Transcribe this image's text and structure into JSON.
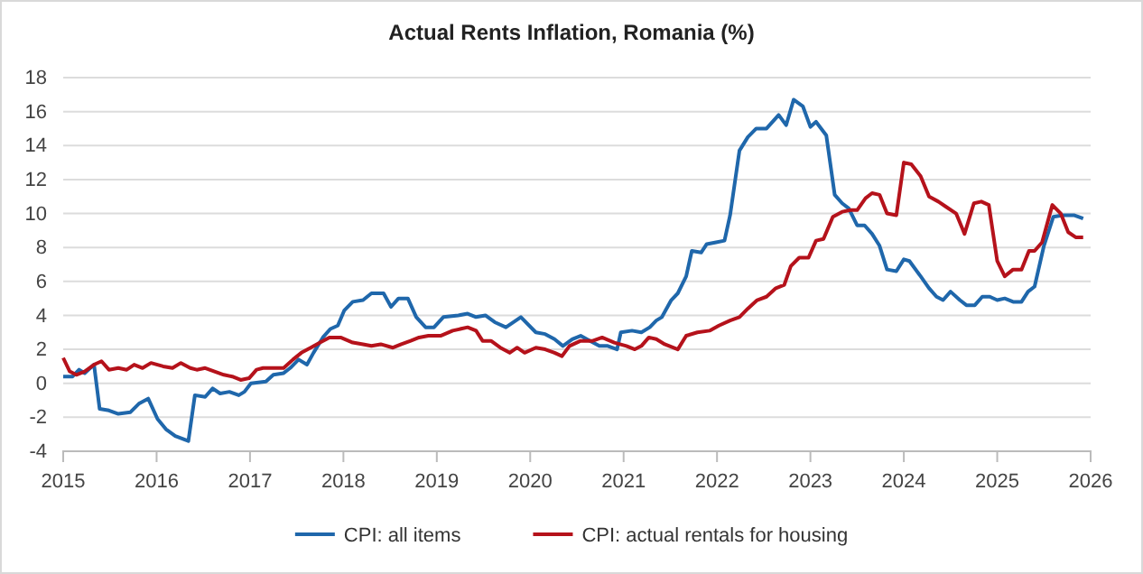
{
  "chart_data": {
    "type": "line",
    "title": "Actual Rents Inflation, Romania (%)",
    "xlim": [
      2015,
      2026
    ],
    "xticks": [
      2015,
      2016,
      2017,
      2018,
      2019,
      2020,
      2021,
      2022,
      2023,
      2024,
      2025,
      2026
    ],
    "ylim": [
      -4,
      18
    ],
    "yticks": [
      -4,
      -2,
      0,
      2,
      4,
      6,
      8,
      10,
      12,
      14,
      16,
      18
    ],
    "grid": "y",
    "legend": "bottom",
    "marker": "none",
    "line_style": "solid",
    "series": [
      {
        "name": "CPI: all items",
        "color": "#1f67ab",
        "x": [
          2015.0,
          2015.1,
          2015.17,
          2015.23,
          2015.33,
          2015.39,
          2015.49,
          2015.59,
          2015.72,
          2015.81,
          2015.91,
          2016.01,
          2016.1,
          2016.2,
          2016.34,
          2016.41,
          2016.52,
          2016.6,
          2016.68,
          2016.78,
          2016.88,
          2016.94,
          2017.01,
          2017.17,
          2017.25,
          2017.36,
          2017.43,
          2017.52,
          2017.61,
          2017.68,
          2017.78,
          2017.86,
          2017.94,
          2018.01,
          2018.1,
          2018.21,
          2018.3,
          2018.43,
          2018.51,
          2018.59,
          2018.69,
          2018.78,
          2018.88,
          2018.97,
          2019.07,
          2019.23,
          2019.33,
          2019.42,
          2019.52,
          2019.62,
          2019.74,
          2019.9,
          2020.06,
          2020.16,
          2020.26,
          2020.35,
          2020.45,
          2020.54,
          2020.64,
          2020.74,
          2020.83,
          2020.93,
          2020.97,
          2021.09,
          2021.19,
          2021.28,
          2021.35,
          2021.41,
          2021.51,
          2021.58,
          2021.67,
          2021.73,
          2021.83,
          2021.89,
          2021.99,
          2022.08,
          2022.14,
          2022.24,
          2022.33,
          2022.42,
          2022.53,
          2022.66,
          2022.74,
          2022.82,
          2022.92,
          2023.0,
          2023.06,
          2023.17,
          2023.26,
          2023.34,
          2023.41,
          2023.5,
          2023.58,
          2023.66,
          2023.74,
          2023.82,
          2023.92,
          2024.0,
          2024.06,
          2024.18,
          2024.27,
          2024.35,
          2024.42,
          2024.5,
          2024.6,
          2024.67,
          2024.76,
          2024.84,
          2024.92,
          2025.0,
          2025.08,
          2025.17,
          2025.26,
          2025.33,
          2025.4,
          2025.5,
          2025.6,
          2025.7,
          2025.82,
          2025.92
        ],
        "values": [
          0.4,
          0.4,
          0.8,
          0.6,
          1.1,
          -1.5,
          -1.6,
          -1.8,
          -1.7,
          -1.2,
          -0.9,
          -2.1,
          -2.7,
          -3.1,
          -3.4,
          -0.7,
          -0.8,
          -0.3,
          -0.6,
          -0.5,
          -0.7,
          -0.5,
          0.0,
          0.1,
          0.5,
          0.6,
          0.9,
          1.4,
          1.1,
          1.8,
          2.7,
          3.2,
          3.4,
          4.3,
          4.8,
          4.9,
          5.3,
          5.3,
          4.5,
          5.0,
          5.0,
          3.9,
          3.3,
          3.3,
          3.9,
          4.0,
          4.1,
          3.9,
          4.0,
          3.6,
          3.3,
          3.9,
          3.0,
          2.9,
          2.6,
          2.2,
          2.6,
          2.8,
          2.5,
          2.2,
          2.2,
          2.0,
          3.0,
          3.1,
          3.0,
          3.3,
          3.7,
          3.9,
          4.9,
          5.3,
          6.3,
          7.8,
          7.7,
          8.2,
          8.3,
          8.4,
          9.9,
          13.7,
          14.5,
          15.0,
          15.0,
          15.8,
          15.2,
          16.7,
          16.3,
          15.1,
          15.4,
          14.6,
          11.1,
          10.6,
          10.3,
          9.3,
          9.3,
          8.8,
          8.1,
          6.7,
          6.6,
          7.3,
          7.2,
          6.3,
          5.6,
          5.1,
          4.9,
          5.4,
          4.9,
          4.6,
          4.6,
          5.1,
          5.1,
          4.9,
          5.0,
          4.8,
          4.8,
          5.4,
          5.7,
          8.1,
          9.8,
          9.9,
          9.9,
          9.7
        ]
      },
      {
        "name": "CPI: actual rentals for housing",
        "color": "#b5121b",
        "x": [
          2015.0,
          2015.07,
          2015.14,
          2015.23,
          2015.33,
          2015.41,
          2015.49,
          2015.59,
          2015.68,
          2015.76,
          2015.85,
          2015.94,
          2016.07,
          2016.17,
          2016.26,
          2016.36,
          2016.43,
          2016.52,
          2016.62,
          2016.72,
          2016.81,
          2016.9,
          2016.99,
          2017.07,
          2017.14,
          2017.23,
          2017.36,
          2017.46,
          2017.55,
          2017.65,
          2017.75,
          2017.85,
          2017.97,
          2018.1,
          2018.21,
          2018.3,
          2018.4,
          2018.53,
          2018.62,
          2018.72,
          2018.81,
          2018.91,
          2019.04,
          2019.17,
          2019.33,
          2019.42,
          2019.49,
          2019.58,
          2019.68,
          2019.78,
          2019.86,
          2019.94,
          2020.06,
          2020.16,
          2020.26,
          2020.34,
          2020.42,
          2020.54,
          2020.67,
          2020.77,
          2020.9,
          2021.03,
          2021.12,
          2021.19,
          2021.27,
          2021.35,
          2021.44,
          2021.58,
          2021.67,
          2021.79,
          2021.92,
          2022.02,
          2022.14,
          2022.24,
          2022.33,
          2022.43,
          2022.53,
          2022.63,
          2022.72,
          2022.79,
          2022.88,
          2022.98,
          2023.06,
          2023.14,
          2023.24,
          2023.34,
          2023.43,
          2023.5,
          2023.59,
          2023.66,
          2023.74,
          2023.82,
          2023.92,
          2024.0,
          2024.08,
          2024.18,
          2024.27,
          2024.37,
          2024.45,
          2024.56,
          2024.65,
          2024.75,
          2024.83,
          2024.91,
          2025.0,
          2025.08,
          2025.17,
          2025.26,
          2025.34,
          2025.4,
          2025.48,
          2025.59,
          2025.68,
          2025.76,
          2025.84,
          2025.92
        ],
        "values": [
          1.5,
          0.7,
          0.5,
          0.7,
          1.1,
          1.3,
          0.8,
          0.9,
          0.8,
          1.1,
          0.9,
          1.2,
          1.0,
          0.9,
          1.2,
          0.9,
          0.8,
          0.9,
          0.7,
          0.5,
          0.4,
          0.2,
          0.3,
          0.8,
          0.9,
          0.9,
          0.9,
          1.4,
          1.8,
          2.1,
          2.4,
          2.7,
          2.7,
          2.4,
          2.3,
          2.2,
          2.3,
          2.1,
          2.3,
          2.5,
          2.7,
          2.8,
          2.8,
          3.1,
          3.3,
          3.1,
          2.5,
          2.5,
          2.1,
          1.8,
          2.1,
          1.8,
          2.1,
          2.0,
          1.8,
          1.6,
          2.2,
          2.5,
          2.5,
          2.7,
          2.4,
          2.2,
          2.0,
          2.2,
          2.7,
          2.6,
          2.3,
          2.0,
          2.8,
          3.0,
          3.1,
          3.4,
          3.7,
          3.9,
          4.4,
          4.9,
          5.1,
          5.6,
          5.8,
          6.9,
          7.4,
          7.4,
          8.4,
          8.5,
          9.8,
          10.1,
          10.2,
          10.2,
          10.9,
          11.2,
          11.1,
          10.0,
          9.9,
          13.0,
          12.9,
          12.2,
          11.0,
          10.7,
          10.4,
          10.0,
          8.8,
          10.6,
          10.7,
          10.5,
          7.2,
          6.3,
          6.7,
          6.7,
          7.8,
          7.8,
          8.3,
          10.5,
          10.0,
          8.9,
          8.6,
          8.6
        ]
      }
    ]
  }
}
